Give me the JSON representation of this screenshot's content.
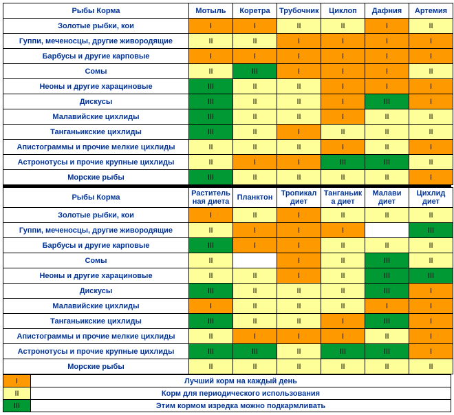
{
  "colors": {
    "orange": "#ff9900",
    "yellow": "#ffff99",
    "green": "#009933",
    "white": "#ffffff",
    "border": "#000000",
    "heading_text": "#003399"
  },
  "marks": {
    "I": "I",
    "II": "II",
    "III": "III",
    "blank": ""
  },
  "tables": [
    {
      "header_label": "Рыбы     Корма",
      "columns": [
        "Мотыль",
        "Коретра",
        "Трубочник",
        "Циклоп",
        "Дафния",
        "Артемия"
      ],
      "rows": [
        {
          "label": "Золотые рыбки, кои",
          "cells": [
            {
              "m": "I",
              "c": "orange"
            },
            {
              "m": "I",
              "c": "orange"
            },
            {
              "m": "II",
              "c": "yellow"
            },
            {
              "m": "II",
              "c": "yellow"
            },
            {
              "m": "I",
              "c": "orange"
            },
            {
              "m": "II",
              "c": "yellow"
            }
          ]
        },
        {
          "label": "Гуппи, меченосцы, другие живородящие",
          "cells": [
            {
              "m": "II",
              "c": "yellow"
            },
            {
              "m": "II",
              "c": "yellow"
            },
            {
              "m": "I",
              "c": "orange"
            },
            {
              "m": "I",
              "c": "orange"
            },
            {
              "m": "I",
              "c": "orange"
            },
            {
              "m": "I",
              "c": "orange"
            }
          ]
        },
        {
          "label": "Барбусы  и другие карповые",
          "cells": [
            {
              "m": "I",
              "c": "orange"
            },
            {
              "m": "I",
              "c": "orange"
            },
            {
              "m": "I",
              "c": "orange"
            },
            {
              "m": "I",
              "c": "orange"
            },
            {
              "m": "I",
              "c": "orange"
            },
            {
              "m": "I",
              "c": "orange"
            }
          ]
        },
        {
          "label": "Сомы",
          "cells": [
            {
              "m": "II",
              "c": "yellow"
            },
            {
              "m": "III",
              "c": "green"
            },
            {
              "m": "I",
              "c": "orange"
            },
            {
              "m": "I",
              "c": "orange"
            },
            {
              "m": "I",
              "c": "orange"
            },
            {
              "m": "II",
              "c": "yellow"
            }
          ]
        },
        {
          "label": "Неоны и другие харациновые",
          "cells": [
            {
              "m": "III",
              "c": "green"
            },
            {
              "m": "II",
              "c": "yellow"
            },
            {
              "m": "II",
              "c": "yellow"
            },
            {
              "m": "I",
              "c": "orange"
            },
            {
              "m": "I",
              "c": "orange"
            },
            {
              "m": "I",
              "c": "orange"
            }
          ]
        },
        {
          "label": "Дискусы",
          "cells": [
            {
              "m": "III",
              "c": "green"
            },
            {
              "m": "II",
              "c": "yellow"
            },
            {
              "m": "II",
              "c": "yellow"
            },
            {
              "m": "I",
              "c": "orange"
            },
            {
              "m": "III",
              "c": "green"
            },
            {
              "m": "I",
              "c": "orange"
            }
          ]
        },
        {
          "label": "Малавийские цихлиды",
          "cells": [
            {
              "m": "III",
              "c": "green"
            },
            {
              "m": "II",
              "c": "yellow"
            },
            {
              "m": "II",
              "c": "yellow"
            },
            {
              "m": "I",
              "c": "orange"
            },
            {
              "m": "II",
              "c": "yellow"
            },
            {
              "m": "II",
              "c": "yellow"
            }
          ]
        },
        {
          "label": "Танганьикские цихлиды",
          "cells": [
            {
              "m": "III",
              "c": "green"
            },
            {
              "m": "II",
              "c": "yellow"
            },
            {
              "m": "I",
              "c": "orange"
            },
            {
              "m": "II",
              "c": "yellow"
            },
            {
              "m": "II",
              "c": "yellow"
            },
            {
              "m": "II",
              "c": "yellow"
            }
          ]
        },
        {
          "label": "Апистограммы и прочие мелкие цихлиды",
          "cells": [
            {
              "m": "II",
              "c": "yellow"
            },
            {
              "m": "II",
              "c": "yellow"
            },
            {
              "m": "II",
              "c": "yellow"
            },
            {
              "m": "I",
              "c": "orange"
            },
            {
              "m": "II",
              "c": "yellow"
            },
            {
              "m": "I",
              "c": "orange"
            }
          ]
        },
        {
          "label": "Астронотусы и прочие крупные цихлиды",
          "cells": [
            {
              "m": "II",
              "c": "yellow"
            },
            {
              "m": "I",
              "c": "orange"
            },
            {
              "m": "I",
              "c": "orange"
            },
            {
              "m": "III",
              "c": "green"
            },
            {
              "m": "III",
              "c": "green"
            },
            {
              "m": "II",
              "c": "yellow"
            }
          ]
        },
        {
          "label": "Морские рыбы",
          "cells": [
            {
              "m": "III",
              "c": "green"
            },
            {
              "m": "II",
              "c": "yellow"
            },
            {
              "m": "II",
              "c": "yellow"
            },
            {
              "m": "II",
              "c": "yellow"
            },
            {
              "m": "II",
              "c": "yellow"
            },
            {
              "m": "I",
              "c": "orange"
            }
          ]
        }
      ]
    },
    {
      "header_label": "Рыбы     Корма",
      "columns": [
        "Раститель ная  диета",
        "Планктон",
        "Тропикал диет",
        "Танганьик а диет",
        "Малави диет",
        "Цихлид диет"
      ],
      "rows": [
        {
          "label": "Золотые рыбки, кои",
          "cells": [
            {
              "m": "I",
              "c": "orange"
            },
            {
              "m": "II",
              "c": "yellow"
            },
            {
              "m": "I",
              "c": "orange"
            },
            {
              "m": "II",
              "c": "yellow"
            },
            {
              "m": "II",
              "c": "yellow"
            },
            {
              "m": "II",
              "c": "yellow"
            }
          ]
        },
        {
          "label": "Гуппи, меченосцы, другие живородящие",
          "cells": [
            {
              "m": "II",
              "c": "yellow"
            },
            {
              "m": "I",
              "c": "orange"
            },
            {
              "m": "I",
              "c": "orange"
            },
            {
              "m": "I",
              "c": "orange"
            },
            {
              "m": "",
              "c": "white"
            },
            {
              "m": "III",
              "c": "green"
            }
          ]
        },
        {
          "label": "Барбусы  и другие карповые",
          "cells": [
            {
              "m": "III",
              "c": "green"
            },
            {
              "m": "I",
              "c": "orange"
            },
            {
              "m": "I",
              "c": "orange"
            },
            {
              "m": "II",
              "c": "yellow"
            },
            {
              "m": "II",
              "c": "yellow"
            },
            {
              "m": "II",
              "c": "yellow"
            }
          ]
        },
        {
          "label": "Сомы",
          "cells": [
            {
              "m": "II",
              "c": "yellow"
            },
            {
              "m": "",
              "c": "white"
            },
            {
              "m": "I",
              "c": "orange"
            },
            {
              "m": "II",
              "c": "yellow"
            },
            {
              "m": "III",
              "c": "green"
            },
            {
              "m": "II",
              "c": "yellow"
            }
          ]
        },
        {
          "label": "Неоны и другие харациновые",
          "cells": [
            {
              "m": "II",
              "c": "yellow"
            },
            {
              "m": "II",
              "c": "yellow"
            },
            {
              "m": "I",
              "c": "orange"
            },
            {
              "m": "II",
              "c": "yellow"
            },
            {
              "m": "III",
              "c": "green"
            },
            {
              "m": "III",
              "c": "green"
            }
          ]
        },
        {
          "label": "Дискусы",
          "cells": [
            {
              "m": "III",
              "c": "green"
            },
            {
              "m": "II",
              "c": "yellow"
            },
            {
              "m": "II",
              "c": "yellow"
            },
            {
              "m": "II",
              "c": "yellow"
            },
            {
              "m": "III",
              "c": "green"
            },
            {
              "m": "I",
              "c": "orange"
            }
          ]
        },
        {
          "label": "Малавийские цихлиды",
          "cells": [
            {
              "m": "I",
              "c": "orange"
            },
            {
              "m": "II",
              "c": "yellow"
            },
            {
              "m": "II",
              "c": "yellow"
            },
            {
              "m": "II",
              "c": "yellow"
            },
            {
              "m": "I",
              "c": "orange"
            },
            {
              "m": "I",
              "c": "orange"
            }
          ]
        },
        {
          "label": "Танганьикские цихлиды",
          "cells": [
            {
              "m": "III",
              "c": "green"
            },
            {
              "m": "II",
              "c": "yellow"
            },
            {
              "m": "II",
              "c": "yellow"
            },
            {
              "m": "I",
              "c": "orange"
            },
            {
              "m": "III",
              "c": "green"
            },
            {
              "m": "I",
              "c": "orange"
            }
          ]
        },
        {
          "label": "Апистограммы и прочие мелкие цихлиды",
          "cells": [
            {
              "m": "II",
              "c": "yellow"
            },
            {
              "m": "I",
              "c": "orange"
            },
            {
              "m": "I",
              "c": "orange"
            },
            {
              "m": "I",
              "c": "orange"
            },
            {
              "m": "II",
              "c": "yellow"
            },
            {
              "m": "I",
              "c": "orange"
            }
          ]
        },
        {
          "label": "Астронотусы и прочие крупные цихлиды",
          "cells": [
            {
              "m": "III",
              "c": "green"
            },
            {
              "m": "III",
              "c": "green"
            },
            {
              "m": "II",
              "c": "yellow"
            },
            {
              "m": "III",
              "c": "green"
            },
            {
              "m": "III",
              "c": "green"
            },
            {
              "m": "I",
              "c": "orange"
            }
          ]
        },
        {
          "label": "Морские рыбы",
          "cells": [
            {
              "m": "II",
              "c": "yellow"
            },
            {
              "m": "II",
              "c": "yellow"
            },
            {
              "m": "II",
              "c": "yellow"
            },
            {
              "m": "II",
              "c": "yellow"
            },
            {
              "m": "II",
              "c": "yellow"
            },
            {
              "m": "II",
              "c": "yellow"
            }
          ]
        }
      ]
    }
  ],
  "legend": [
    {
      "mark": "I",
      "c": "orange",
      "text": "Лучший корм на каждый день"
    },
    {
      "mark": "II",
      "c": "yellow",
      "text": "Корм для периодического использования"
    },
    {
      "mark": "III",
      "c": "green",
      "text": "Этим кормом изредка можно подкармливать"
    }
  ]
}
